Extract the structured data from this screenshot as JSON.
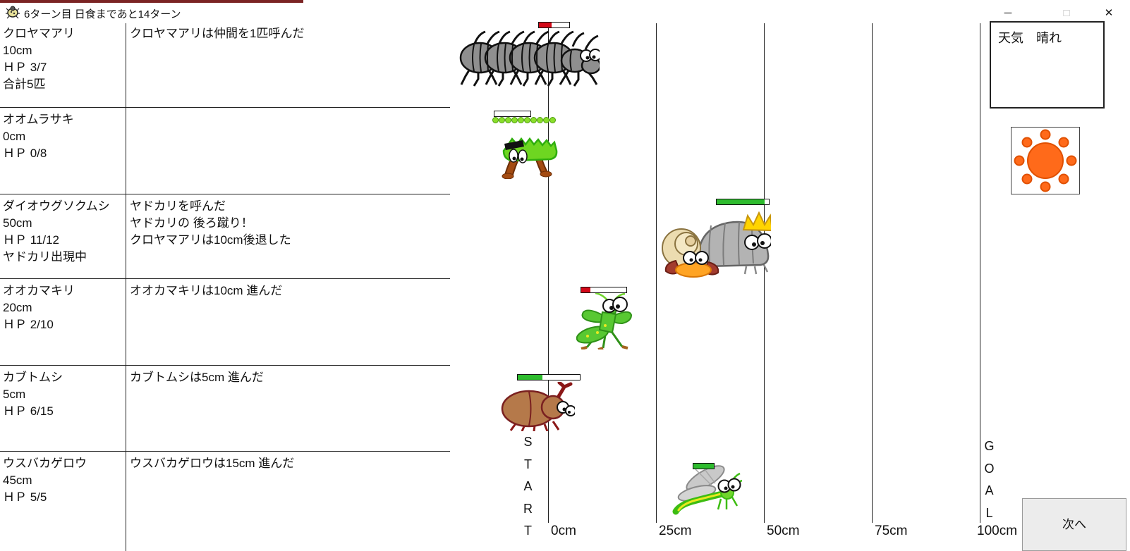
{
  "window": {
    "title": "6ターン目 日食まであと14ターン",
    "controls": {
      "minimize": "─",
      "maximize": "□",
      "close": "✕"
    }
  },
  "panel": {
    "rows": [
      {
        "name": "クロヤマアリ",
        "distance": "10cm",
        "hp": "ＨＰ 3/7",
        "extra": "合計5匹",
        "message": "クロヤマアリは仲間を1匹呼んだ"
      },
      {
        "name": "オオムラサキ",
        "distance": "0cm",
        "hp": "ＨＰ 0/8",
        "extra": "",
        "message": ""
      },
      {
        "name": "ダイオウグソクムシ",
        "distance": "50cm",
        "hp": "ＨＰ 11/12",
        "extra": "ヤドカリ出現中",
        "message": "ヤドカリを呼んだ\nヤドカリの 後ろ蹴り！\nクロヤマアリは10cm後退した"
      },
      {
        "name": "オオカマキリ",
        "distance": "20cm",
        "hp": "ＨＰ 2/10",
        "extra": "",
        "message": "オオカマキリは10cm 進んだ"
      },
      {
        "name": "カブトムシ",
        "distance": "5cm",
        "hp": "ＨＰ 6/15",
        "extra": "",
        "message": "カブトムシは5cm 進んだ"
      },
      {
        "name": "ウスバカゲロウ",
        "distance": "45cm",
        "hp": "ＨＰ 5/5",
        "extra": "",
        "message": "ウスバカゲロウは15cm 進んだ"
      }
    ]
  },
  "track": {
    "ticks": [
      "0cm",
      "25cm",
      "50cm",
      "75cm",
      "100cm"
    ],
    "start": "START",
    "goal": "GOAL",
    "egg_dots": 10,
    "bars": {
      "kuroyamaari": {
        "pct": "43%",
        "color": "#d40818"
      },
      "oomurasaki": {
        "pct": "0%",
        "color": "#d40818"
      },
      "daiougusokumushi": {
        "pct": "92%",
        "color": "#2ebc2e"
      },
      "ookamakiri": {
        "pct": "20%",
        "color": "#d40818"
      },
      "kabutomushi": {
        "pct": "40%",
        "color": "#2ebc2e"
      },
      "usubakagerou": {
        "pct": "100%",
        "color": "#2ebc2e"
      }
    }
  },
  "weather": {
    "label": "天気　晴れ",
    "sun_color": "#ff6a1a"
  },
  "next_button": {
    "label": "次へ"
  }
}
